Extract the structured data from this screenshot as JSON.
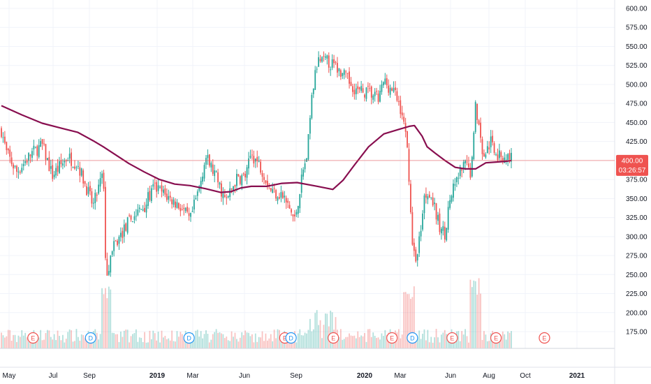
{
  "chart_data": {
    "type": "candlestick",
    "title": "",
    "ylim": [
      140,
      610
    ],
    "y_ticks": [
      "600.00",
      "575.00",
      "550.00",
      "525.00",
      "500.00",
      "475.00",
      "450.00",
      "425.00",
      "400.00",
      "375.00",
      "350.00",
      "325.00",
      "300.00",
      "275.00",
      "250.00",
      "225.00",
      "200.00",
      "175.00"
    ],
    "x_labels": [
      {
        "label": "May",
        "bold": false
      },
      {
        "label": "Jul",
        "bold": false
      },
      {
        "label": "Sep",
        "bold": false
      },
      {
        "label": "2019",
        "bold": true
      },
      {
        "label": "Mar",
        "bold": false
      },
      {
        "label": "Jun",
        "bold": false
      },
      {
        "label": "Sep",
        "bold": false
      },
      {
        "label": "2020",
        "bold": true
      },
      {
        "label": "Mar",
        "bold": false
      },
      {
        "label": "Jun",
        "bold": false
      },
      {
        "label": "Aug",
        "bold": false
      },
      {
        "label": "Oct",
        "bold": false
      },
      {
        "label": "2021",
        "bold": true
      }
    ],
    "current_price": "400.00",
    "countdown": "03:26:57",
    "grid": true,
    "colors": {
      "up": "#26a69a",
      "down": "#ef5350",
      "ma": "#880e4f",
      "price_tag": "#ef5350",
      "dividend": "#2196f3",
      "earnings": "#ef5350"
    },
    "moving_average": {
      "name": "",
      "points": [
        [
          0,
          472
        ],
        [
          0.04,
          460
        ],
        [
          0.08,
          449
        ],
        [
          0.12,
          442
        ],
        [
          0.15,
          437
        ],
        [
          0.18,
          426
        ],
        [
          0.2,
          418
        ],
        [
          0.25,
          396
        ],
        [
          0.28,
          385
        ],
        [
          0.31,
          375
        ],
        [
          0.34,
          369
        ],
        [
          0.37,
          367
        ],
        [
          0.4,
          363
        ],
        [
          0.43,
          358
        ],
        [
          0.45,
          359
        ],
        [
          0.47,
          364
        ],
        [
          0.49,
          366
        ],
        [
          0.52,
          366
        ],
        [
          0.55,
          370
        ],
        [
          0.58,
          371
        ],
        [
          0.62,
          366
        ],
        [
          0.65,
          362
        ],
        [
          0.67,
          374
        ],
        [
          0.69,
          392
        ],
        [
          0.72,
          418
        ],
        [
          0.75,
          435
        ],
        [
          0.78,
          441
        ],
        [
          0.8,
          445
        ],
        [
          0.81,
          446
        ],
        [
          0.825,
          432
        ],
        [
          0.835,
          418
        ],
        [
          0.85,
          410
        ],
        [
          0.87,
          400
        ],
        [
          0.89,
          391
        ],
        [
          0.91,
          389
        ],
        [
          0.93,
          389
        ],
        [
          0.95,
          397
        ],
        [
          0.97,
          398
        ],
        [
          0.99,
          399
        ],
        [
          1.0,
          400
        ]
      ]
    },
    "price_path": [
      [
        0,
        440
      ],
      [
        0.01,
        410
      ],
      [
        0.03,
        385
      ],
      [
        0.06,
        410
      ],
      [
        0.08,
        420
      ],
      [
        0.1,
        380
      ],
      [
        0.13,
        405
      ],
      [
        0.15,
        395
      ],
      [
        0.18,
        340
      ],
      [
        0.2,
        385
      ],
      [
        0.205,
        250
      ],
      [
        0.22,
        285
      ],
      [
        0.25,
        320
      ],
      [
        0.28,
        340
      ],
      [
        0.3,
        365
      ],
      [
        0.32,
        355
      ],
      [
        0.35,
        340
      ],
      [
        0.37,
        320
      ],
      [
        0.39,
        370
      ],
      [
        0.4,
        405
      ],
      [
        0.42,
        380
      ],
      [
        0.44,
        345
      ],
      [
        0.46,
        375
      ],
      [
        0.48,
        380
      ],
      [
        0.49,
        410
      ],
      [
        0.51,
        390
      ],
      [
        0.53,
        360
      ],
      [
        0.55,
        355
      ],
      [
        0.57,
        330
      ],
      [
        0.575,
        320
      ],
      [
        0.59,
        380
      ],
      [
        0.6,
        410
      ],
      [
        0.61,
        490
      ],
      [
        0.62,
        530
      ],
      [
        0.64,
        530
      ],
      [
        0.66,
        520
      ],
      [
        0.68,
        505
      ],
      [
        0.7,
        490
      ],
      [
        0.72,
        490
      ],
      [
        0.74,
        480
      ],
      [
        0.75,
        505
      ],
      [
        0.77,
        490
      ],
      [
        0.785,
        465
      ],
      [
        0.795,
        420
      ],
      [
        0.8,
        375
      ],
      [
        0.805,
        290
      ],
      [
        0.815,
        270
      ],
      [
        0.83,
        355
      ],
      [
        0.84,
        360
      ],
      [
        0.86,
        310
      ],
      [
        0.87,
        305
      ],
      [
        0.88,
        350
      ],
      [
        0.9,
        385
      ],
      [
        0.91,
        395
      ],
      [
        0.92,
        385
      ],
      [
        0.93,
        475
      ],
      [
        0.945,
        405
      ],
      [
        0.96,
        425
      ],
      [
        0.975,
        405
      ],
      [
        1.0,
        405
      ]
    ],
    "events": [
      {
        "type": "E",
        "label": "E",
        "pos": 0.062
      },
      {
        "type": "D",
        "label": "D",
        "pos": 0.175
      },
      {
        "type": "D",
        "label": "D",
        "pos": 0.368
      },
      {
        "type": "E",
        "label": "E",
        "pos": 0.556
      },
      {
        "type": "D",
        "label": "D",
        "pos": 0.568
      },
      {
        "type": "E",
        "label": "E",
        "pos": 0.651
      },
      {
        "type": "E",
        "label": "E",
        "pos": 0.766
      },
      {
        "type": "D",
        "label": "D",
        "pos": 0.806
      },
      {
        "type": "E",
        "label": "E",
        "pos": 0.884
      },
      {
        "type": "E",
        "label": "E",
        "pos": 0.97
      },
      {
        "type": "E",
        "label": "E",
        "pos": 1.065
      }
    ]
  }
}
